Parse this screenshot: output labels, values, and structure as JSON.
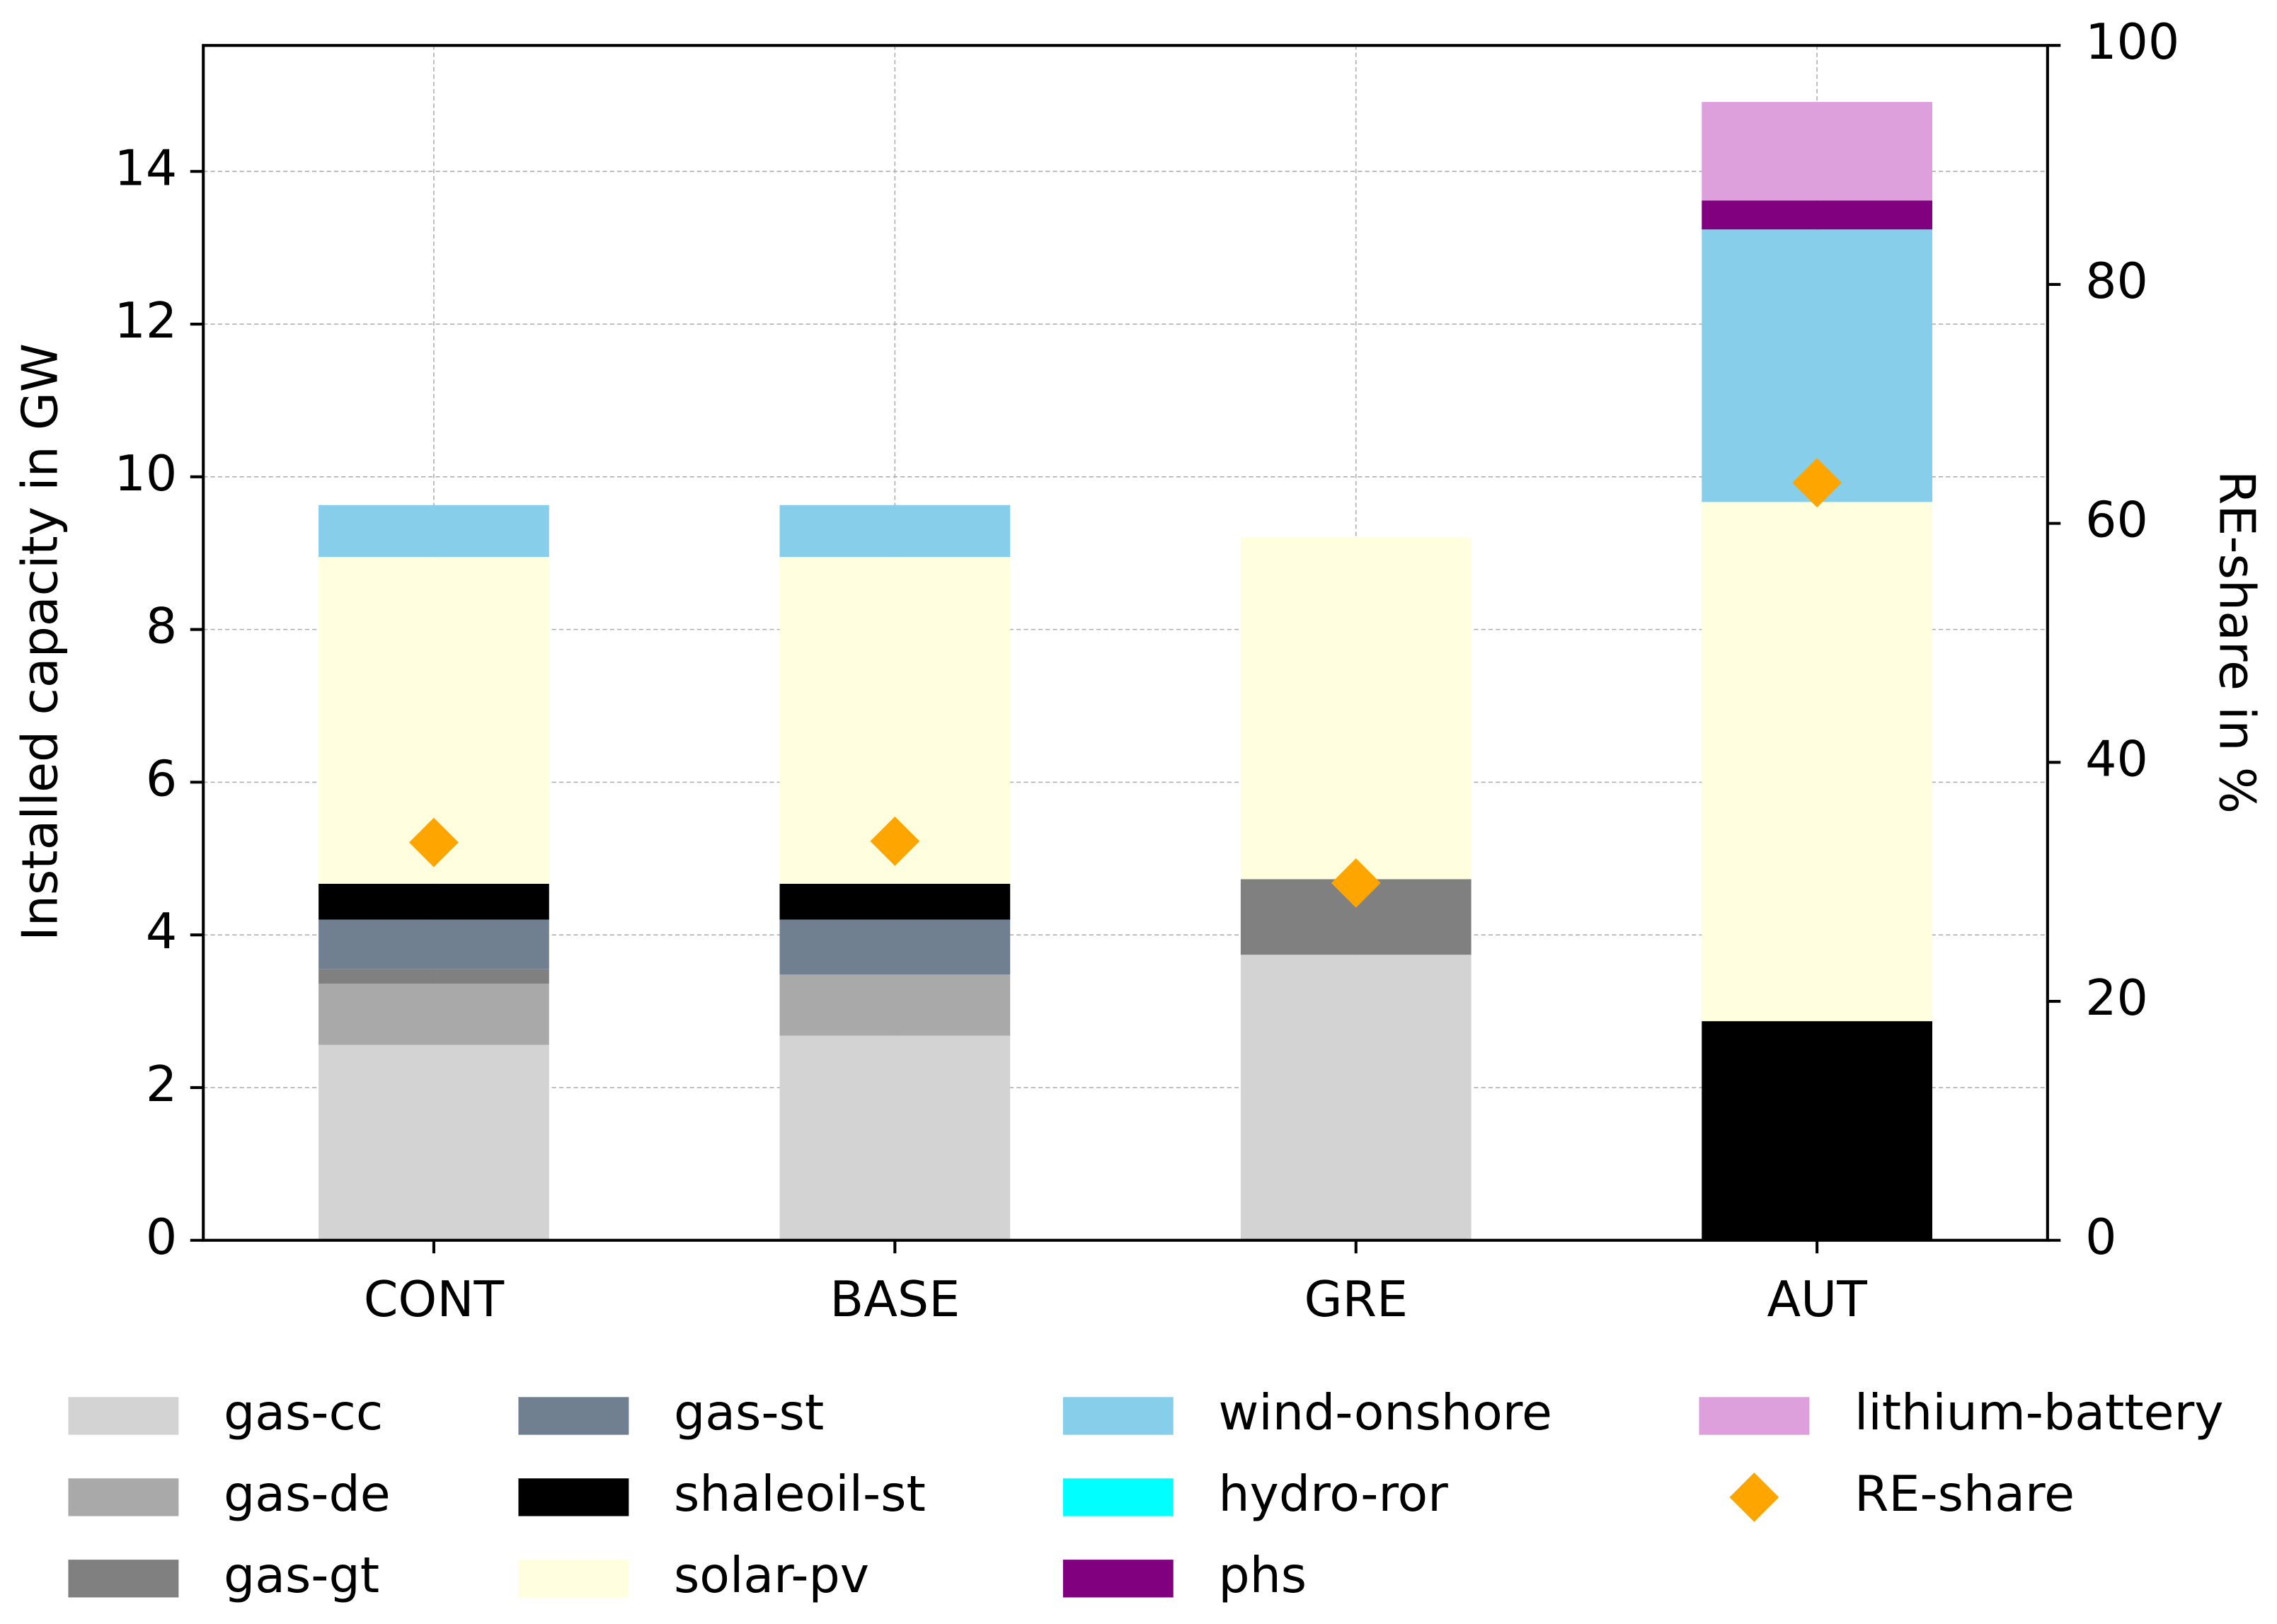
{
  "chart_data": {
    "type": "bar",
    "stacked": true,
    "categories": [
      "CONT",
      "BASE",
      "GRE",
      "AUT"
    ],
    "ylabel": "Installed capacity in GW",
    "y2label": "RE-share in %",
    "ylim": [
      0,
      15.65
    ],
    "yticks": [
      0,
      2,
      4,
      6,
      8,
      10,
      12,
      14
    ],
    "y2lim": [
      0,
      100
    ],
    "y2ticks": [
      0,
      20,
      40,
      60,
      80,
      100
    ],
    "grid": true,
    "legend": "below",
    "series": [
      {
        "name": "gas-cc",
        "color": "#d3d3d3",
        "values": [
          2.56,
          2.68,
          3.74,
          0
        ]
      },
      {
        "name": "gas-de",
        "color": "#a9a9a9",
        "values": [
          0.8,
          0.8,
          0,
          0
        ]
      },
      {
        "name": "gas-gt",
        "color": "#808080",
        "values": [
          0.19,
          0,
          0.99,
          0
        ]
      },
      {
        "name": "gas-st",
        "color": "#708090",
        "values": [
          0.65,
          0.72,
          0,
          0
        ]
      },
      {
        "name": "shaleoil-st",
        "color": "#000000",
        "values": [
          0.47,
          0.47,
          0,
          2.87
        ]
      },
      {
        "name": "solar-pv",
        "color": "#ffffe0",
        "values": [
          4.28,
          4.28,
          4.48,
          6.8
        ]
      },
      {
        "name": "wind-onshore",
        "color": "#87ceeb",
        "values": [
          0.68,
          0.68,
          0,
          3.57
        ]
      },
      {
        "name": "hydro-ror",
        "color": "#00ffff",
        "values": [
          0,
          0,
          0,
          0
        ]
      },
      {
        "name": "phs",
        "color": "#800080",
        "values": [
          0,
          0,
          0,
          0.38
        ]
      },
      {
        "name": "lithium-battery",
        "color": "#dda0dd",
        "values": [
          0,
          0,
          0,
          1.29
        ]
      },
      {
        "name": "RE-share",
        "color": "#ffa500",
        "axis": "y2",
        "marker": "diamond",
        "values": [
          33.3,
          33.4,
          29.9,
          63.4
        ]
      }
    ]
  }
}
